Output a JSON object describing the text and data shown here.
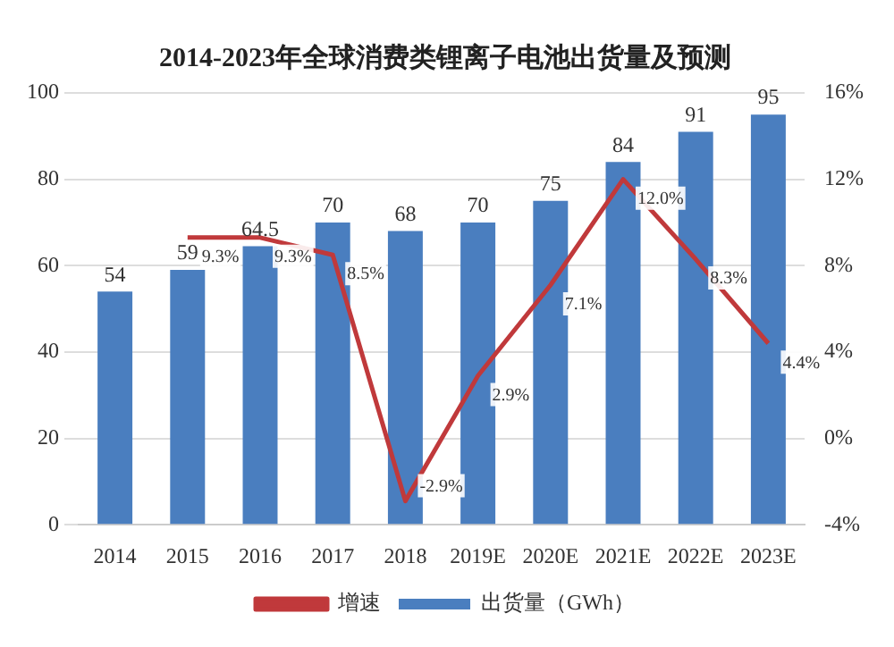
{
  "chart_data": {
    "type": "bar",
    "title": "2014-2023年全球消费类锂离子电池出货量及预测",
    "categories": [
      "2014",
      "2015",
      "2016",
      "2017",
      "2018",
      "2019E",
      "2020E",
      "2021E",
      "2022E",
      "2023E"
    ],
    "series": [
      {
        "name": "出货量（GWh）",
        "color": "#4a7ebf",
        "values": [
          54,
          59,
          64.5,
          70,
          68,
          70,
          75,
          84,
          91,
          95
        ],
        "value_labels": [
          "54",
          "59",
          "64.5",
          "70",
          "68",
          "70",
          "75",
          "84",
          "91",
          "95"
        ]
      },
      {
        "name": "增速",
        "type": "line",
        "axis": "y2",
        "color": "#c0393b",
        "values": [
          null,
          9.3,
          9.3,
          8.5,
          -2.9,
          2.9,
          7.1,
          12.0,
          8.3,
          4.4
        ],
        "value_labels": [
          null,
          "9.3%",
          "9.3%",
          "8.5%",
          "-2.9%",
          "2.9%",
          "7.1%",
          "12.0%",
          "8.3%",
          "4.4%"
        ]
      }
    ],
    "ylim": [
      0,
      100
    ],
    "yticks": [
      0,
      20,
      40,
      60,
      80,
      100
    ],
    "y2lim": [
      -4,
      16
    ],
    "y2ticks": [
      {
        "value": -4,
        "label": "-4%"
      },
      {
        "value": 0,
        "label": "0%"
      },
      {
        "value": 4,
        "label": "4%"
      },
      {
        "value": 8,
        "label": "8%"
      },
      {
        "value": 12,
        "label": "12%"
      },
      {
        "value": 16,
        "label": "16%"
      }
    ],
    "grid": "y",
    "legend": "bottom",
    "marker": "none",
    "line_style": "solid"
  }
}
